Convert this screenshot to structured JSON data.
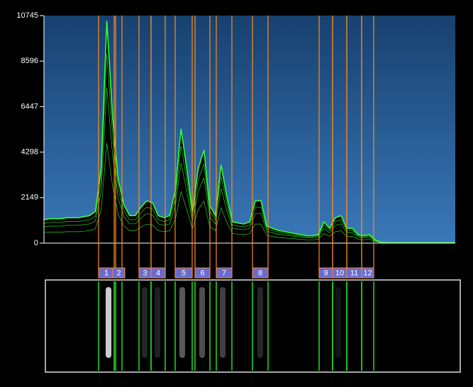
{
  "chart_data": {
    "type": "line",
    "values": [
      1100,
      1150,
      1150,
      1150,
      1200,
      1200,
      1200,
      1250,
      1300,
      1500,
      3500,
      10500,
      6000,
      3000,
      1800,
      1300,
      1300,
      1700,
      2000,
      1900,
      1300,
      1200,
      1300,
      2500,
      5400,
      3500,
      1500,
      3500,
      4400,
      1800,
      1300,
      3700,
      2200,
      1000,
      950,
      900,
      1000,
      2000,
      2000,
      800,
      700,
      600,
      550,
      500,
      450,
      400,
      350,
      350,
      400,
      1000,
      700,
      1200,
      1300,
      700,
      700,
      400,
      350,
      400,
      150,
      50,
      20,
      20,
      20,
      20,
      20,
      20,
      20,
      20,
      20,
      20,
      20,
      20,
      20
    ],
    "color": "#33ff33",
    "ylim": [
      0,
      10745
    ],
    "yticks": [
      0,
      2149,
      4298,
      6447,
      8596,
      10745
    ],
    "lanes": [
      "1",
      "2",
      "3",
      "4",
      "5",
      "6",
      "7",
      "8",
      "9",
      "10",
      "11",
      "12"
    ]
  }
}
